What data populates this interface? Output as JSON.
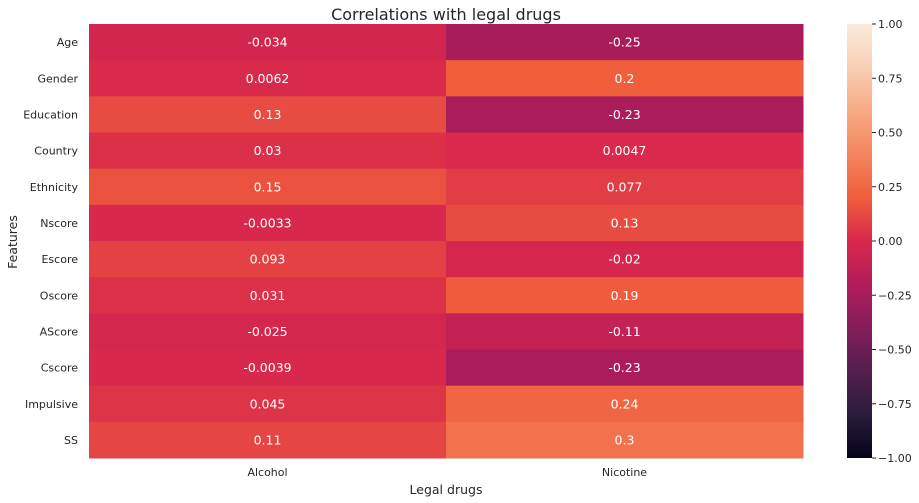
{
  "chart_data": {
    "type": "heatmap",
    "title": "Correlations with legal drugs",
    "xlabel": "Legal drugs",
    "ylabel": "Features",
    "columns": [
      "Alcohol",
      "Nicotine"
    ],
    "rows": [
      "Age",
      "Gender",
      "Education",
      "Country",
      "Ethnicity",
      "Nscore",
      "Escore",
      "Oscore",
      "AScore",
      "Cscore",
      "Impulsive",
      "SS"
    ],
    "values": [
      [
        -0.034,
        -0.25
      ],
      [
        0.0062,
        0.2
      ],
      [
        0.13,
        -0.23
      ],
      [
        0.03,
        0.0047
      ],
      [
        0.15,
        0.077
      ],
      [
        -0.0033,
        0.13
      ],
      [
        0.093,
        -0.02
      ],
      [
        0.031,
        0.19
      ],
      [
        -0.025,
        -0.11
      ],
      [
        -0.0039,
        -0.23
      ],
      [
        0.045,
        0.24
      ],
      [
        0.11,
        0.3
      ]
    ],
    "cell_labels": [
      [
        "-0.034",
        "-0.25"
      ],
      [
        "0.0062",
        "0.2"
      ],
      [
        "0.13",
        "-0.23"
      ],
      [
        "0.03",
        "0.0047"
      ],
      [
        "0.15",
        "0.077"
      ],
      [
        "-0.0033",
        "0.13"
      ],
      [
        "0.093",
        "-0.02"
      ],
      [
        "0.031",
        "0.19"
      ],
      [
        "-0.025",
        "-0.11"
      ],
      [
        "-0.0039",
        "-0.23"
      ],
      [
        "0.045",
        "0.24"
      ],
      [
        "0.11",
        "0.3"
      ]
    ],
    "colorbar": {
      "range": [
        -1,
        1
      ],
      "ticks": [
        1,
        0.75,
        0.5,
        0.25,
        0,
        -0.25,
        -0.5,
        -0.75,
        -1
      ],
      "tick_labels": [
        "1.00",
        "0.75",
        "0.50",
        "0.25",
        "0.00",
        "−0.25",
        "−0.50",
        "−0.75",
        "−1.00"
      ],
      "colormap": "rocket",
      "colormap_stops": [
        "#03051a",
        "#2b1c3b",
        "#541e4f",
        "#841e5a",
        "#b21c5a",
        "#d9284c",
        "#f05e3b",
        "#f3855e",
        "#f6aa83",
        "#f9cfb4",
        "#faebdd"
      ]
    }
  }
}
